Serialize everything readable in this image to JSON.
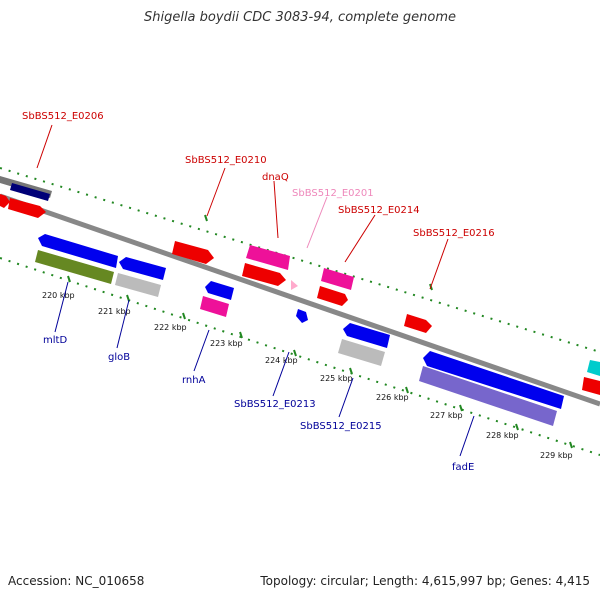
{
  "title": "Shigella boydii CDC 3083-94, complete genome",
  "footer": {
    "accession": "Accession: NC_010658",
    "stats": "Topology: circular; Length: 4,615,997 bp; Genes: 4,415"
  },
  "colors": {
    "forward_label": "#cc0000",
    "reverse_label": "#000099",
    "pink_label": "#ee88bb",
    "backbone": "#888888",
    "tick": "#228822"
  },
  "scale_ticks": [
    "220 kbp",
    "221 kbp",
    "222 kbp",
    "223 kbp",
    "224 kbp",
    "225 kbp",
    "226 kbp",
    "227 kbp",
    "228 kbp",
    "229 kbp"
  ],
  "forward_labels": [
    "SbBS512_E0206",
    "SbBS512_E0210",
    "dnaQ",
    "SbBS512_E0201",
    "SbBS512_E0214",
    "SbBS512_E0216"
  ],
  "reverse_labels": [
    "mltD",
    "gloB",
    "rnhA",
    "SbBS512_E0213",
    "SbBS512_E0215",
    "fadE"
  ]
}
